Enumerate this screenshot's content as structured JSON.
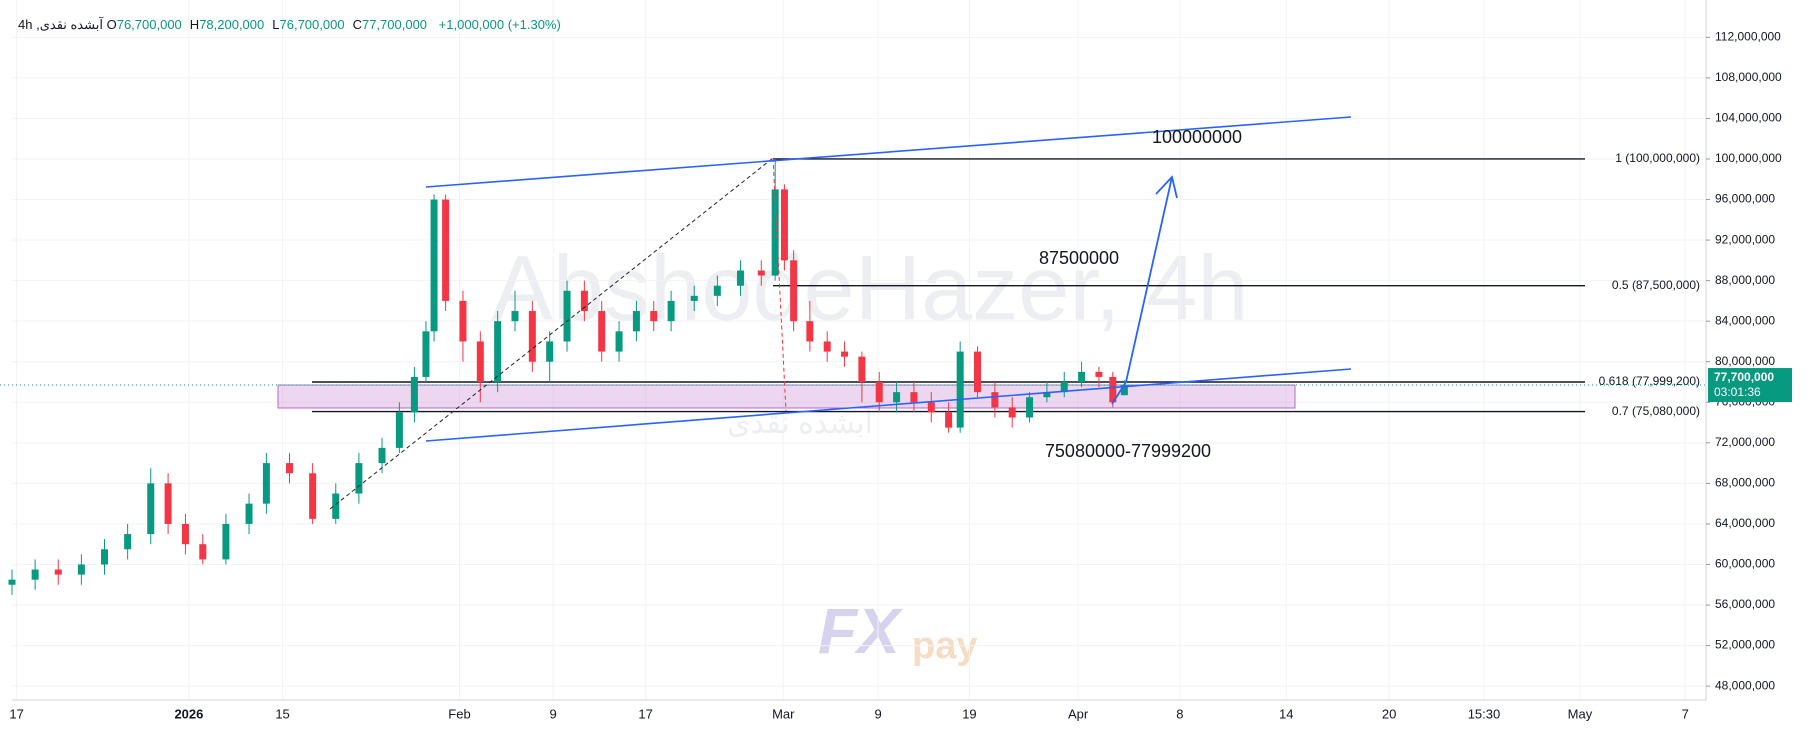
{
  "chart_data": {
    "type": "candlestick",
    "header": {
      "symbol": "آبشده نقدی, 4h",
      "ohlc": [
        {
          "key": "O",
          "value": "76,700,000"
        },
        {
          "key": "H",
          "value": "78,200,000"
        },
        {
          "key": "L",
          "value": "76,700,000"
        },
        {
          "key": "C",
          "value": "77,700,000"
        }
      ],
      "change": "+1,000,000 (+1.30%)"
    },
    "watermark": "AbshodeHazer, 4h",
    "watermark_symbol": "آبشده نقدی",
    "logo": [
      "FX",
      "pay"
    ],
    "up_color": "#089981",
    "down_color": "#f23645",
    "grid": true,
    "xlim": [
      0,
      1465
    ],
    "xticks": [
      {
        "value": 4,
        "label": "17"
      },
      {
        "value": 153,
        "label": "2026"
      },
      {
        "value": 234,
        "label": "15"
      },
      {
        "value": 387,
        "label": "Feb"
      },
      {
        "value": 468,
        "label": "9"
      },
      {
        "value": 548,
        "label": "17"
      },
      {
        "value": 667,
        "label": "Mar"
      },
      {
        "value": 749,
        "label": "9"
      },
      {
        "value": 828,
        "label": "19"
      },
      {
        "value": 922,
        "label": "Apr"
      },
      {
        "value": 1010,
        "label": "8"
      },
      {
        "value": 1102,
        "label": "14"
      },
      {
        "value": 1191,
        "label": "20"
      },
      {
        "value": 1273,
        "label": "15:30"
      },
      {
        "value": 1356,
        "label": "May"
      },
      {
        "value": 1447,
        "label": "7"
      }
    ],
    "ylim": [
      46630000,
      114500000
    ],
    "yticks": [
      {
        "value": 48000000,
        "label": "48,000,000"
      },
      {
        "value": 52000000,
        "label": "52,000,000"
      },
      {
        "value": 56000000,
        "label": "56,000,000"
      },
      {
        "value": 60000000,
        "label": "60,000,000"
      },
      {
        "value": 64000000,
        "label": "64,000,000"
      },
      {
        "value": 68000000,
        "label": "68,000,000"
      },
      {
        "value": 72000000,
        "label": "72,000,000"
      },
      {
        "value": 76000000,
        "label": "76,000,000"
      },
      {
        "value": 80000000,
        "label": "80,000,000"
      },
      {
        "value": 84000000,
        "label": "84,000,000"
      },
      {
        "value": 88000000,
        "label": "88,000,000"
      },
      {
        "value": 92000000,
        "label": "92,000,000"
      },
      {
        "value": 96000000,
        "label": "96,000,000"
      },
      {
        "value": 100000000,
        "label": "100,000,000"
      },
      {
        "value": 104000000,
        "label": "104,000,000"
      },
      {
        "value": 108000000,
        "label": "108,000,000"
      },
      {
        "value": 112000000,
        "label": "112,000,000"
      }
    ],
    "x": [
      0,
      20,
      40,
      60,
      80,
      100,
      120,
      135,
      150,
      165,
      185,
      205,
      220,
      240,
      260,
      280,
      300,
      320,
      335,
      348,
      358,
      365,
      375,
      390,
      405,
      420,
      435,
      450,
      465,
      480,
      495,
      510,
      525,
      540,
      555,
      570,
      590,
      610,
      630,
      648,
      660,
      668,
      676,
      690,
      705,
      720,
      735,
      750,
      765,
      780,
      795,
      810,
      820,
      835,
      850,
      865,
      880,
      895,
      910,
      925,
      940,
      952,
      962
    ],
    "open": [
      58000000,
      58500000,
      59500000,
      59000000,
      60000000,
      61500000,
      63000000,
      68000000,
      64000000,
      62000000,
      60500000,
      64000000,
      66000000,
      70000000,
      69000000,
      64500000,
      67000000,
      70000000,
      71500000,
      75000000,
      78500000,
      83000000,
      96000000,
      86000000,
      82000000,
      78000000,
      84000000,
      85000000,
      80000000,
      82000000,
      87000000,
      85000000,
      81000000,
      83000000,
      85000000,
      84000000,
      86000000,
      86500000,
      87500000,
      89000000,
      88500000,
      97000000,
      90000000,
      84000000,
      82000000,
      81000000,
      80500000,
      78000000,
      76000000,
      77000000,
      76000000,
      75000000,
      73500000,
      81000000,
      77000000,
      75500000,
      74500000,
      76500000,
      77000000,
      78000000,
      79000000,
      78500000,
      76700000
    ],
    "high": [
      59500000,
      60500000,
      60500000,
      61000000,
      62500000,
      64000000,
      69500000,
      69000000,
      65000000,
      63000000,
      65000000,
      67000000,
      71000000,
      71000000,
      70000000,
      68000000,
      71000000,
      72500000,
      76000000,
      79500000,
      84000000,
      96500000,
      96500000,
      87000000,
      83000000,
      85000000,
      87000000,
      86000000,
      83000000,
      88000000,
      88000000,
      86000000,
      84000000,
      86000000,
      86000000,
      87000000,
      87500000,
      88500000,
      90000000,
      90000000,
      100000000,
      97500000,
      91000000,
      86000000,
      83000000,
      82000000,
      81000000,
      79000000,
      78000000,
      78000000,
      77000000,
      76000000,
      82000000,
      81500000,
      78000000,
      76500000,
      77000000,
      78000000,
      79000000,
      80000000,
      79500000,
      79000000,
      78200000
    ],
    "low": [
      57000000,
      57500000,
      58000000,
      58000000,
      59000000,
      60500000,
      62000000,
      63000000,
      61000000,
      60000000,
      60000000,
      63000000,
      65000000,
      68000000,
      64000000,
      64000000,
      66000000,
      69000000,
      71000000,
      74000000,
      78000000,
      82000000,
      85000000,
      80000000,
      76000000,
      77000000,
      83000000,
      79000000,
      78000000,
      81000000,
      84000000,
      80000000,
      80000000,
      82000000,
      83000000,
      83000000,
      85000000,
      85500000,
      86500000,
      87500000,
      88000000,
      89000000,
      83000000,
      81000000,
      80000000,
      79500000,
      76000000,
      75000000,
      75000000,
      75000000,
      74000000,
      73000000,
      73000000,
      76500000,
      74500000,
      73500000,
      74000000,
      76000000,
      76500000,
      77500000,
      77500000,
      75500000,
      76700000
    ],
    "close": [
      58500000,
      59500000,
      59000000,
      60000000,
      61500000,
      63000000,
      68000000,
      64000000,
      62000000,
      60500000,
      64000000,
      66000000,
      70000000,
      69000000,
      64500000,
      67000000,
      70000000,
      71500000,
      75000000,
      78500000,
      83000000,
      96000000,
      86000000,
      82000000,
      78000000,
      84000000,
      85000000,
      80000000,
      82000000,
      87000000,
      85000000,
      81000000,
      83000000,
      85000000,
      84000000,
      86000000,
      86500000,
      87500000,
      89000000,
      88500000,
      97000000,
      90000000,
      84000000,
      82000000,
      81000000,
      80500000,
      78000000,
      76000000,
      77000000,
      76000000,
      75000000,
      73500000,
      81000000,
      77000000,
      75500000,
      74500000,
      76500000,
      77000000,
      78000000,
      79000000,
      78500000,
      76000000,
      77700000
    ],
    "last_price": {
      "value": 77700000,
      "label": "77,700,000",
      "countdown": "03:01:36"
    },
    "fib_levels": [
      {
        "value": 100000000,
        "label": "1 (100,000,000)"
      },
      {
        "value": 87500000,
        "label": "0.5 (87,500,000)"
      },
      {
        "value": 77999200,
        "label": "0.618 (77,999,200)"
      },
      {
        "value": 75080000,
        "label": "0.7 (75,080,000)"
      }
    ],
    "annotations": [
      "100000000",
      "87500000",
      "75080000-77999200"
    ]
  }
}
